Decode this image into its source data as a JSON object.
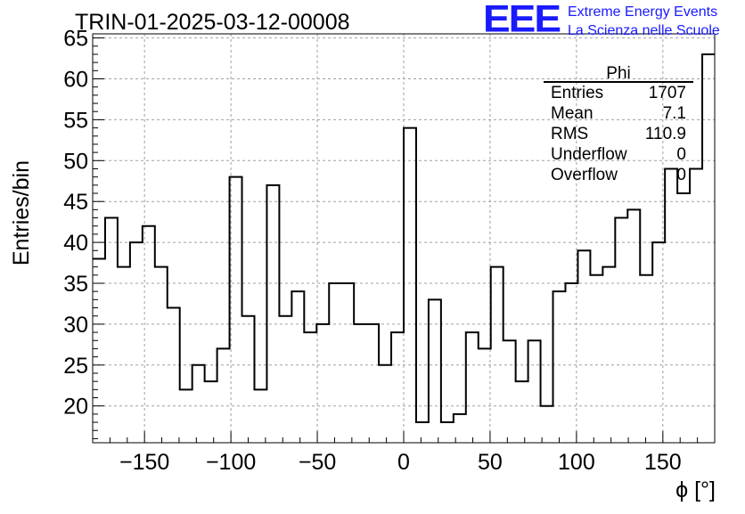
{
  "chart_data": {
    "type": "histogram-step",
    "title": "TRIN-01-2025-03-12-00008",
    "xlabel": "ϕ [°]",
    "ylabel": "Entries/bin",
    "xlim": [
      -180,
      180
    ],
    "ylim": [
      15.5,
      65.5
    ],
    "bin_width": 7.2,
    "xticks": [
      -150,
      -100,
      -50,
      0,
      50,
      100,
      150
    ],
    "yticks": [
      20,
      25,
      30,
      35,
      40,
      45,
      50,
      55,
      60,
      65
    ],
    "grid": true,
    "values": [
      38,
      43,
      37,
      40,
      42,
      37,
      32,
      22,
      25,
      23,
      27,
      48,
      31,
      22,
      47,
      31,
      34,
      29,
      30,
      35,
      35,
      30,
      30,
      25,
      29,
      54,
      18,
      33,
      18,
      19,
      29,
      27,
      37,
      28,
      23,
      28,
      20,
      34,
      35,
      39,
      36,
      37,
      43,
      44,
      36,
      40,
      49,
      46,
      49,
      63
    ],
    "stats": {
      "name": "Phi",
      "rows": [
        {
          "label": "Entries",
          "value": "1707"
        },
        {
          "label": "Mean",
          "value": "7.1"
        },
        {
          "label": "RMS",
          "value": "110.9"
        },
        {
          "label": "Underflow",
          "value": "0"
        },
        {
          "label": "Overflow",
          "value": "0"
        }
      ]
    },
    "logo": {
      "mark": "EEE",
      "line1": "Extreme Energy Events",
      "line2": "La Scienza nelle Scuole",
      "color": "#1a1aff"
    }
  }
}
